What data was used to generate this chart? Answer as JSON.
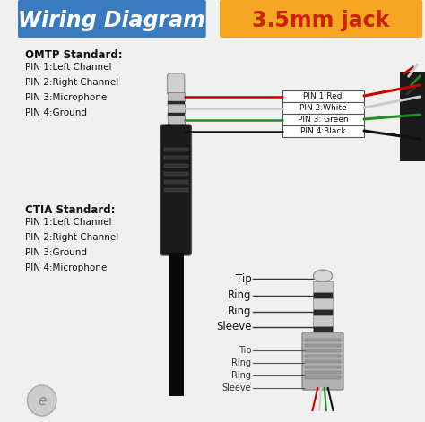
{
  "title_left": "Wiring Diagram",
  "title_right": "3.5mm jack",
  "bg_color": "#f0f0f0",
  "title_left_bg": "#3a7bbf",
  "title_right_bg": "#f5a623",
  "title_left_color": "#ffffff",
  "title_right_color": "#cc2200",
  "omtp_header": "OMTP Standard:",
  "omtp_pins": [
    "PIN 1:Left Channel",
    "PIN 2:Right Channel",
    "PIN 3:Microphone",
    "PIN 4:Ground"
  ],
  "ctia_header": "CTIA Standard:",
  "ctia_pins": [
    "PIN 1:Left Channel",
    "PIN 2:Right Channel",
    "PIN 3:Ground",
    "PIN 4:Microphone"
  ],
  "wire_labels": [
    "PIN 1:Red",
    "PIN 2:White",
    "PIN 3: Green",
    "PIN 4:Black"
  ],
  "jack_labels_upper": [
    "Tip",
    "Ring",
    "Ring",
    "Sleeve"
  ],
  "jack_labels_lower": [
    "Tip",
    "Ring",
    "Ring",
    "Sleeve"
  ],
  "wire_colors": [
    "#cc0000",
    "#cccccc",
    "#228B22",
    "#111111"
  ]
}
